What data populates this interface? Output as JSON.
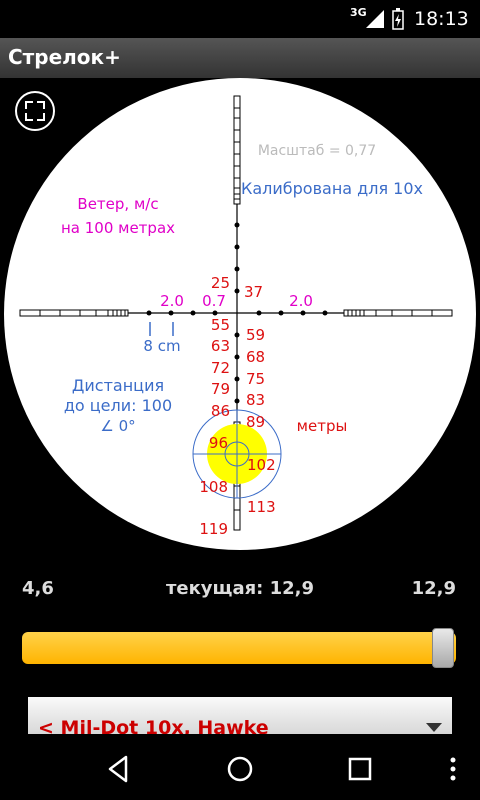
{
  "status_bar": {
    "network": "3G",
    "time": "18:13"
  },
  "app": {
    "title": "Стрелок+"
  },
  "scope": {
    "scale_text": "Масштаб = 0,77",
    "calibration_text": "Калибрована для 10x",
    "wind_line1": "Ветер, м/с",
    "wind_line2": "на 100 метрах",
    "wind_left_outer": "2.0",
    "wind_left_inner": "0.7",
    "wind_right": "2.0",
    "scale_bar_label": "8 cm",
    "distance_line1": "Дистанция",
    "distance_line2": "до цели: 100",
    "angle_text": "∠ 0°",
    "units_text": "метры",
    "left_marks": [
      "25",
      "55",
      "63",
      "72",
      "79",
      "86",
      "96",
      "108",
      "119"
    ],
    "right_marks": [
      "37",
      "59",
      "68",
      "75",
      "83",
      "89",
      "102",
      "113"
    ]
  },
  "zoom": {
    "min": "4,6",
    "current": "текущая: 12,9",
    "max": "12,9",
    "level": 1.0
  },
  "reticle_select": {
    "label": "< Mil-Dot 10x, Hawke"
  },
  "colors": {
    "wind": "#e000c8",
    "range": "#dd1111",
    "info": "#3b6cc8",
    "scale": "#bbbbbb",
    "target": "#ffff00",
    "slider": "#ffc20a"
  },
  "icons": [
    "fullscreen-icon",
    "back-icon",
    "home-icon",
    "recents-icon",
    "overflow-menu-icon",
    "signal-icon",
    "battery-icon"
  ]
}
